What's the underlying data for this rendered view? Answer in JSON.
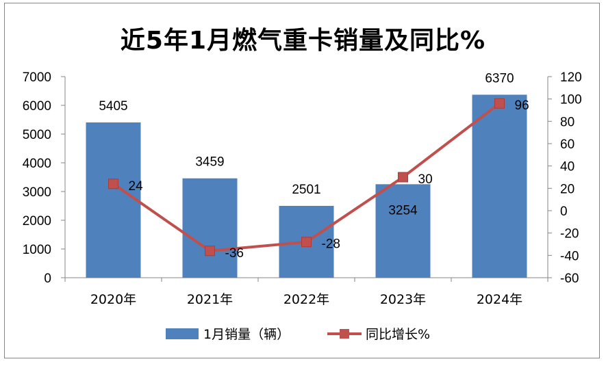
{
  "chart_data": {
    "type": "bar",
    "title": "近5年1月燃气重卡销量及同比%",
    "categories": [
      "2020年",
      "2021年",
      "2022年",
      "2023年",
      "2024年"
    ],
    "series": [
      {
        "name": "1月销量（辆）",
        "type": "bar",
        "axis": "left",
        "values": [
          5405,
          3459,
          2501,
          3254,
          6370
        ],
        "color": "#4f81bd"
      },
      {
        "name": "同比增长%",
        "type": "line",
        "axis": "right",
        "values": [
          24,
          -36,
          -28,
          30,
          96
        ],
        "color": "#c0504d"
      }
    ],
    "y_left": {
      "min": 0,
      "max": 7000,
      "step": 1000,
      "ticks": [
        "0",
        "1000",
        "2000",
        "3000",
        "4000",
        "5000",
        "6000",
        "7000"
      ]
    },
    "y_right": {
      "min": -60,
      "max": 120,
      "step": 20,
      "ticks": [
        "-60",
        "-40",
        "-20",
        "0",
        "20",
        "40",
        "60",
        "80",
        "100",
        "120"
      ]
    },
    "grid": false,
    "legend": "bottom"
  }
}
